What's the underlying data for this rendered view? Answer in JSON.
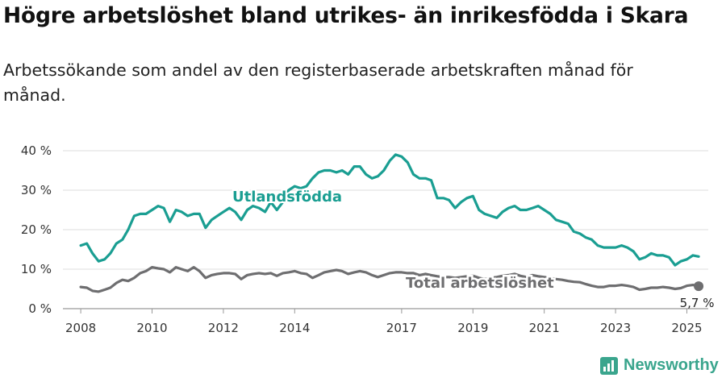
{
  "title": "Högre arbetslöshet bland utrikes- än inrikesfödda i Skara",
  "subtitle": "Arbetssökande som andel av den registerbaserade arbetskraften månad för månad.",
  "brand": {
    "name": "Newsworthy",
    "color": "#3aa58d"
  },
  "chart_data": {
    "type": "line",
    "x_unit": "year",
    "xlim": [
      2007.5,
      2025.6
    ],
    "ylim": [
      0,
      40
    ],
    "y_ticks": [
      0,
      10,
      20,
      30,
      40
    ],
    "y_tick_labels": [
      "0 %",
      "10 %",
      "20 %",
      "30 %",
      "40 %"
    ],
    "x_ticks": [
      2008,
      2010,
      2012,
      2014,
      2017,
      2019,
      2021,
      2023,
      2025
    ],
    "x_tick_labels": [
      "2008",
      "2010",
      "2012",
      "2014",
      "2017",
      "2019",
      "2021",
      "2023",
      "2025"
    ],
    "grid": true,
    "end_value_label": "5,7 %",
    "series": [
      {
        "name": "Utlandsfödda",
        "color": "#1a9e92",
        "x": [
          2008.0,
          2008.17,
          2008.33,
          2008.5,
          2008.67,
          2008.83,
          2009.0,
          2009.17,
          2009.33,
          2009.5,
          2009.67,
          2009.83,
          2010.0,
          2010.17,
          2010.33,
          2010.5,
          2010.67,
          2010.83,
          2011.0,
          2011.17,
          2011.33,
          2011.5,
          2011.67,
          2011.83,
          2012.0,
          2012.17,
          2012.33,
          2012.5,
          2012.67,
          2012.83,
          2013.0,
          2013.17,
          2013.33,
          2013.5,
          2013.67,
          2013.83,
          2014.0,
          2014.17,
          2014.33,
          2014.5,
          2014.67,
          2014.83,
          2015.0,
          2015.17,
          2015.33,
          2015.5,
          2015.67,
          2015.83,
          2016.0,
          2016.17,
          2016.33,
          2016.5,
          2016.67,
          2016.83,
          2017.0,
          2017.17,
          2017.33,
          2017.5,
          2017.67,
          2017.83,
          2018.0,
          2018.17,
          2018.33,
          2018.5,
          2018.67,
          2018.83,
          2019.0,
          2019.17,
          2019.33,
          2019.5,
          2019.67,
          2019.83,
          2020.0,
          2020.17,
          2020.33,
          2020.5,
          2020.67,
          2020.83,
          2021.0,
          2021.17,
          2021.33,
          2021.5,
          2021.67,
          2021.83,
          2022.0,
          2022.17,
          2022.33,
          2022.5,
          2022.67,
          2022.83,
          2023.0,
          2023.17,
          2023.33,
          2023.5,
          2023.67,
          2023.83,
          2024.0,
          2024.17,
          2024.33,
          2024.5,
          2024.67,
          2024.83,
          2025.0,
          2025.17,
          2025.33
        ],
        "values": [
          16,
          16.5,
          14,
          12,
          12.5,
          14,
          16.5,
          17.5,
          20,
          23.5,
          24,
          24,
          25,
          26,
          25.5,
          22,
          25,
          24.5,
          23.5,
          24,
          24,
          20.5,
          22.5,
          23.5,
          24.5,
          25.5,
          24.5,
          22.5,
          25,
          26,
          25.5,
          24.5,
          27,
          25,
          27,
          30,
          31,
          30.5,
          31,
          33,
          34.5,
          35,
          35,
          34.5,
          35,
          34,
          36,
          36,
          34,
          33,
          33.5,
          35,
          37.5,
          39,
          38.5,
          37,
          34,
          33,
          33,
          32.5,
          28,
          28,
          27.5,
          25.5,
          27,
          28,
          28.5,
          25,
          24,
          23.5,
          23,
          24.5,
          25.5,
          26,
          25,
          25,
          25.5,
          26,
          25,
          24,
          22.5,
          22,
          21.5,
          19.5,
          19,
          18,
          17.5,
          16,
          15.5,
          15.5,
          15.5,
          16,
          15.5,
          14.5,
          12.5,
          13,
          14,
          13.5,
          13.5,
          13,
          11,
          12,
          12.5,
          13.5,
          13.2
        ]
      },
      {
        "name": "Total arbetslöshet",
        "color": "#6e6e70",
        "x": [
          2008.0,
          2008.17,
          2008.33,
          2008.5,
          2008.67,
          2008.83,
          2009.0,
          2009.17,
          2009.33,
          2009.5,
          2009.67,
          2009.83,
          2010.0,
          2010.17,
          2010.33,
          2010.5,
          2010.67,
          2010.83,
          2011.0,
          2011.17,
          2011.33,
          2011.5,
          2011.67,
          2011.83,
          2012.0,
          2012.17,
          2012.33,
          2012.5,
          2012.67,
          2012.83,
          2013.0,
          2013.17,
          2013.33,
          2013.5,
          2013.67,
          2013.83,
          2014.0,
          2014.17,
          2014.33,
          2014.5,
          2014.67,
          2014.83,
          2015.0,
          2015.17,
          2015.33,
          2015.5,
          2015.67,
          2015.83,
          2016.0,
          2016.17,
          2016.33,
          2016.5,
          2016.67,
          2016.83,
          2017.0,
          2017.17,
          2017.33,
          2017.5,
          2017.67,
          2017.83,
          2018.0,
          2018.17,
          2018.33,
          2018.5,
          2018.67,
          2018.83,
          2019.0,
          2019.17,
          2019.33,
          2019.5,
          2019.67,
          2019.83,
          2020.0,
          2020.17,
          2020.33,
          2020.5,
          2020.67,
          2020.83,
          2021.0,
          2021.17,
          2021.33,
          2021.5,
          2021.67,
          2021.83,
          2022.0,
          2022.17,
          2022.33,
          2022.5,
          2022.67,
          2022.83,
          2023.0,
          2023.17,
          2023.33,
          2023.5,
          2023.67,
          2023.83,
          2024.0,
          2024.17,
          2024.33,
          2024.5,
          2024.67,
          2024.83,
          2025.0,
          2025.17,
          2025.33
        ],
        "values": [
          5.5,
          5.3,
          4.5,
          4.3,
          4.8,
          5.3,
          6.5,
          7.3,
          7,
          7.8,
          9,
          9.5,
          10.5,
          10.2,
          10,
          9.2,
          10.5,
          10,
          9.5,
          10.5,
          9.5,
          7.8,
          8.5,
          8.8,
          9,
          9,
          8.8,
          7.5,
          8.5,
          8.8,
          9,
          8.8,
          9,
          8.3,
          9,
          9.2,
          9.5,
          9,
          8.8,
          7.8,
          8.5,
          9.2,
          9.5,
          9.8,
          9.5,
          8.8,
          9.2,
          9.5,
          9.2,
          8.5,
          8,
          8.5,
          9,
          9.2,
          9.2,
          9,
          9,
          8.5,
          8.8,
          8.5,
          8.2,
          8,
          8,
          7.8,
          8,
          8.2,
          8.3,
          7.8,
          7.5,
          7.8,
          8,
          8.3,
          8.5,
          8.8,
          8.3,
          8,
          8.5,
          8.2,
          8,
          7.8,
          7.5,
          7.3,
          7,
          6.8,
          6.7,
          6.2,
          5.8,
          5.5,
          5.5,
          5.8,
          5.8,
          6,
          5.8,
          5.5,
          4.8,
          5,
          5.3,
          5.3,
          5.5,
          5.3,
          5,
          5.2,
          5.8,
          6,
          5.7
        ]
      }
    ]
  }
}
